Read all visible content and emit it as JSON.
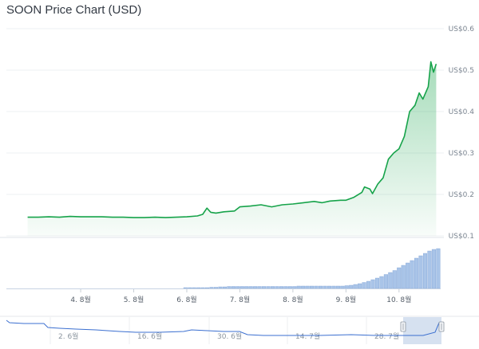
{
  "header": {
    "title": "SOON Price Chart (USD)"
  },
  "chart_data": {
    "type": "area",
    "title": "SOON Price Chart (USD)",
    "y_ticks": [
      "US$0.6",
      "US$0.5",
      "US$0.4",
      "US$0.3",
      "US$0.2",
      "US$0.1"
    ],
    "y_tick_values": [
      0.6,
      0.5,
      0.4,
      0.3,
      0.2,
      0.1
    ],
    "ylim": [
      0.1,
      0.6
    ],
    "x_ticks": [
      "4. 8월",
      "5. 8월",
      "6. 8월",
      "7. 8월",
      "8. 8월",
      "9. 8월",
      "10. 8월"
    ],
    "grid": true,
    "series": [
      {
        "values": [
          [
            3.0,
            0.145
          ],
          [
            3.2,
            0.145
          ],
          [
            3.4,
            0.146
          ],
          [
            3.6,
            0.145
          ],
          [
            3.8,
            0.147
          ],
          [
            4.0,
            0.146
          ],
          [
            4.2,
            0.146
          ],
          [
            4.4,
            0.146
          ],
          [
            4.6,
            0.145
          ],
          [
            4.8,
            0.145
          ],
          [
            5.0,
            0.144
          ],
          [
            5.2,
            0.144
          ],
          [
            5.4,
            0.145
          ],
          [
            5.6,
            0.144
          ],
          [
            5.8,
            0.145
          ],
          [
            6.0,
            0.146
          ],
          [
            6.2,
            0.148
          ],
          [
            6.3,
            0.152
          ],
          [
            6.38,
            0.167
          ],
          [
            6.45,
            0.157
          ],
          [
            6.55,
            0.155
          ],
          [
            6.7,
            0.158
          ],
          [
            6.9,
            0.16
          ],
          [
            7.0,
            0.17
          ],
          [
            7.2,
            0.172
          ],
          [
            7.4,
            0.175
          ],
          [
            7.6,
            0.17
          ],
          [
            7.8,
            0.175
          ],
          [
            8.0,
            0.177
          ],
          [
            8.2,
            0.18
          ],
          [
            8.4,
            0.183
          ],
          [
            8.55,
            0.18
          ],
          [
            8.7,
            0.184
          ],
          [
            8.9,
            0.186
          ],
          [
            9.0,
            0.186
          ],
          [
            9.15,
            0.193
          ],
          [
            9.3,
            0.205
          ],
          [
            9.35,
            0.218
          ],
          [
            9.45,
            0.213
          ],
          [
            9.5,
            0.202
          ],
          [
            9.6,
            0.225
          ],
          [
            9.7,
            0.24
          ],
          [
            9.8,
            0.285
          ],
          [
            9.9,
            0.3
          ],
          [
            10.0,
            0.31
          ],
          [
            10.1,
            0.34
          ],
          [
            10.2,
            0.4
          ],
          [
            10.3,
            0.415
          ],
          [
            10.38,
            0.445
          ],
          [
            10.45,
            0.43
          ],
          [
            10.55,
            0.46
          ],
          [
            10.6,
            0.52
          ],
          [
            10.65,
            0.495
          ],
          [
            10.7,
            0.515
          ]
        ]
      }
    ],
    "volume_values": [
      0.02,
      0.02,
      0.02,
      0.02,
      0.02,
      0.02,
      0.03,
      0.03,
      0.04,
      0.04,
      0.05,
      0.05,
      0.05,
      0.05,
      0.05,
      0.05,
      0.05,
      0.05,
      0.05,
      0.05,
      0.05,
      0.05,
      0.05,
      0.05,
      0.05,
      0.05,
      0.06,
      0.06,
      0.06,
      0.06,
      0.06,
      0.06,
      0.06,
      0.06,
      0.06,
      0.06,
      0.06,
      0.07,
      0.08,
      0.1,
      0.12,
      0.15,
      0.18,
      0.22,
      0.26,
      0.3,
      0.35,
      0.4,
      0.45,
      0.52,
      0.58,
      0.64,
      0.7,
      0.76,
      0.82,
      0.88,
      0.94,
      0.98,
      1.0
    ],
    "navigator": {
      "x_ticks": [
        "2. 6월",
        "16. 6월",
        "30. 6월",
        "14. 7월",
        "28. 7월"
      ]
    }
  },
  "colors": {
    "line": "#16a34a",
    "fill_top": "#16a34a",
    "volume": "#a9c4e8",
    "nav_line": "#3b6fd0",
    "nav_mask": "#c5d4ea",
    "grid": "#eef0f3"
  }
}
